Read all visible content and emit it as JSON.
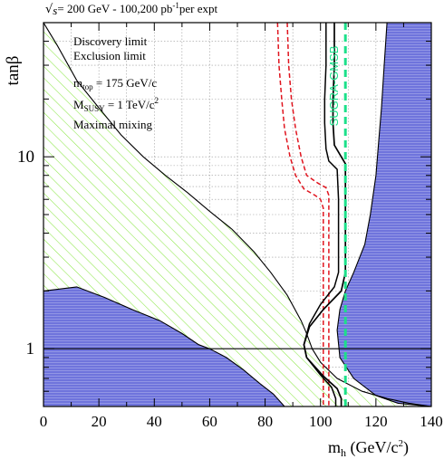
{
  "chart_data": {
    "type": "area",
    "header": {
      "sqrt": "√",
      "s": "s",
      "eq": "= 200 GeV - 100,200 pb",
      "sup": "-1",
      "tail": "per expt"
    },
    "ylabel": "tanβ",
    "xlabel": {
      "main": "m",
      "sub": "h",
      "units_pre": " (GeV/c",
      "units_sup": "2",
      "units_post": ")"
    },
    "xlim": [
      0,
      140
    ],
    "ylim": [
      0.5,
      50
    ],
    "yscale": "log",
    "x_ticks": [
      0,
      20,
      40,
      60,
      80,
      100,
      120,
      140
    ],
    "y_tick_labels": [
      {
        "value": 1,
        "label": "1"
      },
      {
        "value": 10,
        "label": "10"
      }
    ],
    "grid": true,
    "legend_lines": {
      "discovery": "Discovery limit",
      "exclusion": "Exclusion limit"
    },
    "params": {
      "mtop": {
        "pre": "m",
        "sub": "top",
        "post": " = 175 GeV/c"
      },
      "msusy": {
        "pre": "M",
        "sub": "SUSY",
        "post": " = 1 TeV/c",
        "sup": "2"
      },
      "mixing": "Maximal mixing"
    },
    "annotation": "SUGRA-GMSB",
    "colors": {
      "theory_excluded": "#6f74dc",
      "lep_excluded_hatch": "#8ee84a",
      "exclusion_lines": "#e0141e",
      "sugra_gmsb": "#1ce08a",
      "discovery_lines": "#000000"
    },
    "series": [
      {
        "values": [
          [
            0,
            2.0
          ],
          [
            12,
            2.1
          ],
          [
            22,
            1.85
          ],
          [
            32,
            1.6
          ],
          [
            42,
            1.4
          ],
          [
            50,
            1.2
          ],
          [
            56,
            1.05
          ],
          [
            60,
            1.0
          ],
          [
            66,
            0.9
          ],
          [
            72,
            0.78
          ],
          [
            78,
            0.66
          ],
          [
            83,
            0.58
          ],
          [
            87,
            0.5
          ]
        ]
      },
      {
        "values": [
          [
            0,
            50
          ],
          [
            5,
            38
          ],
          [
            12,
            25
          ],
          [
            20,
            18
          ],
          [
            28,
            13
          ],
          [
            36,
            10
          ],
          [
            44,
            8
          ],
          [
            52,
            6.5
          ],
          [
            60,
            5.2
          ],
          [
            68,
            4.2
          ],
          [
            76,
            3.2
          ],
          [
            82,
            2.5
          ],
          [
            88,
            1.9
          ],
          [
            93,
            1.4
          ],
          [
            95,
            1.2
          ],
          [
            97,
            1.0
          ],
          [
            100,
            0.85
          ],
          [
            106,
            0.7
          ],
          [
            115,
            0.6
          ],
          [
            124,
            0.55
          ],
          [
            132,
            0.52
          ],
          [
            140,
            0.5
          ]
        ]
      },
      {
        "values": [
          [
            140,
            50
          ],
          [
            124,
            50
          ],
          [
            123,
            30
          ],
          [
            122,
            18
          ],
          [
            121,
            12
          ],
          [
            120,
            8
          ],
          [
            118,
            5
          ],
          [
            116,
            3.5
          ],
          [
            112,
            2.5
          ],
          [
            109,
            2.0
          ],
          [
            107,
            1.6
          ],
          [
            106,
            1.25
          ],
          [
            107,
            0.9
          ],
          [
            112,
            0.7
          ],
          [
            120,
            0.57
          ],
          [
            128,
            0.52
          ],
          [
            140,
            0.5
          ]
        ]
      },
      {
        "values": [
          [
            84.5,
            50
          ],
          [
            85,
            30
          ],
          [
            86,
            20
          ],
          [
            87,
            14
          ],
          [
            89,
            10
          ],
          [
            91,
            8
          ],
          [
            94,
            6.8
          ],
          [
            98,
            6.3
          ],
          [
            100,
            6.0
          ],
          [
            101,
            5.4
          ],
          [
            101,
            4.5
          ],
          [
            101,
            3.5
          ],
          [
            101,
            2.0
          ],
          [
            101,
            1.2
          ],
          [
            101,
            0.6
          ],
          [
            101,
            0.5
          ]
        ]
      },
      {
        "values": [
          [
            88,
            50
          ],
          [
            88.5,
            30
          ],
          [
            89.5,
            20
          ],
          [
            91,
            14
          ],
          [
            93,
            10
          ],
          [
            95,
            8
          ],
          [
            99,
            7.3
          ],
          [
            102,
            6.9
          ],
          [
            103,
            6.3
          ],
          [
            103,
            5.0
          ],
          [
            103,
            3.5
          ],
          [
            103,
            2.0
          ],
          [
            103,
            1.2
          ],
          [
            103,
            0.6
          ],
          [
            103,
            0.5
          ]
        ]
      },
      {
        "values": [
          [
            105,
            50
          ],
          [
            105,
            30
          ],
          [
            104.5,
            20
          ],
          [
            104.5,
            15
          ],
          [
            105,
            11.5
          ],
          [
            109,
            9.2
          ],
          [
            109,
            6
          ],
          [
            109,
            3.5
          ],
          [
            109,
            2.5
          ],
          [
            107.5,
            2.0
          ],
          [
            101,
            1.6
          ],
          [
            96,
            1.3
          ],
          [
            94,
            1.05
          ],
          [
            95,
            0.9
          ],
          [
            101,
            0.72
          ],
          [
            106,
            0.62
          ],
          [
            107.5,
            0.55
          ],
          [
            107.5,
            0.5
          ]
        ]
      },
      {
        "values": [
          [
            102,
            50
          ],
          [
            102,
            30
          ],
          [
            101.5,
            20
          ],
          [
            101.5,
            15
          ],
          [
            102,
            11
          ],
          [
            103,
            9.5
          ],
          [
            104,
            9.2
          ],
          [
            106,
            8.6
          ],
          [
            106.5,
            6
          ],
          [
            106.5,
            3.5
          ],
          [
            106.5,
            2.5
          ],
          [
            105,
            2.1
          ],
          [
            100,
            1.7
          ],
          [
            96,
            1.35
          ],
          [
            94,
            1.05
          ],
          [
            95,
            0.9
          ],
          [
            100,
            0.73
          ],
          [
            104,
            0.63
          ],
          [
            105.5,
            0.55
          ],
          [
            105.5,
            0.5
          ]
        ]
      },
      {
        "values": [
          [
            109,
            50
          ],
          [
            109,
            0.5
          ]
        ]
      }
    ]
  }
}
